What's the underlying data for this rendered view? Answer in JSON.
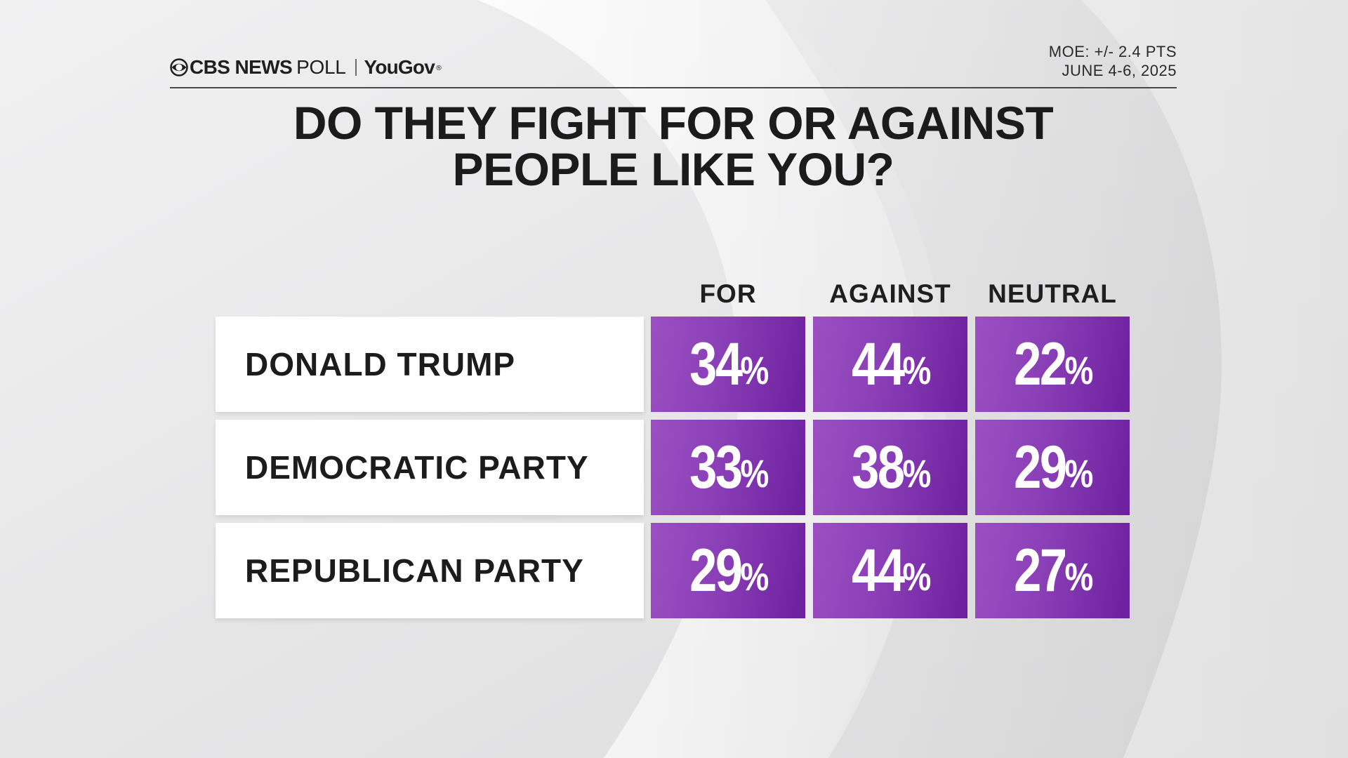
{
  "brand": {
    "network": "CBS NEWS",
    "poll": "POLL",
    "partner": "YouGov",
    "icon": "cbs-eye-icon"
  },
  "meta": {
    "moe": "MOE: +/- 2.4 PTS",
    "dates": "JUNE 4-6, 2025"
  },
  "colors": {
    "cell_light": "#9b4fc1",
    "cell_dark": "#6c1f9e",
    "background": "#e9e9ea"
  },
  "chart_data": {
    "type": "table",
    "title": [
      "DO THEY FIGHT FOR OR AGAINST",
      "PEOPLE LIKE YOU?"
    ],
    "columns": [
      "FOR",
      "AGAINST",
      "NEUTRAL"
    ],
    "rows": [
      {
        "label": "DONALD TRUMP",
        "values": [
          34,
          44,
          22
        ]
      },
      {
        "label": "DEMOCRATIC PARTY",
        "values": [
          33,
          38,
          29
        ]
      },
      {
        "label": "REPUBLICAN PARTY",
        "values": [
          29,
          44,
          27
        ]
      }
    ],
    "unit": "%"
  }
}
